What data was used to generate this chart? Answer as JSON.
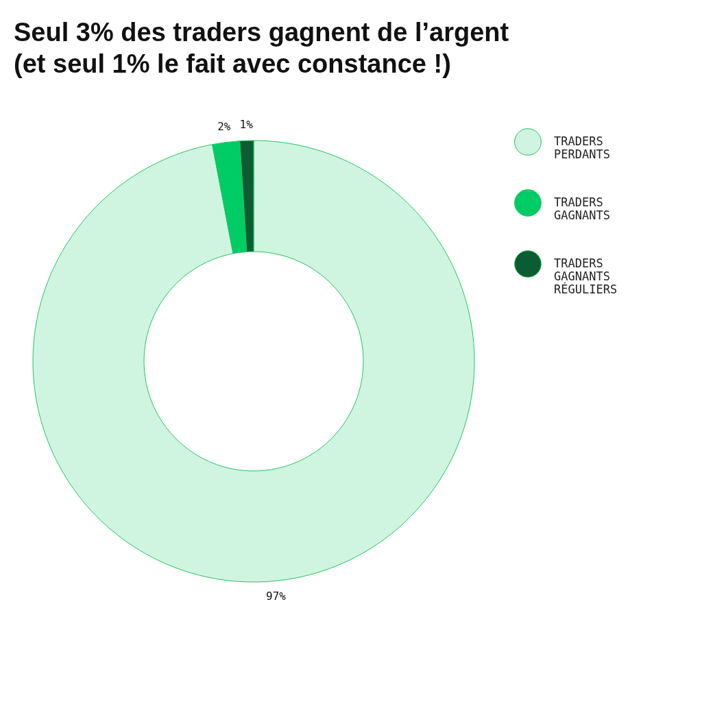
{
  "chart_data": {
    "type": "donut",
    "title": "Seul 3% des traders gagnent de l’argent\n(et seul 1% le fait avec constance !)",
    "categories": [
      "TRADERS PERDANTS",
      "TRADERS GAGNANTS",
      "TRADERS GAGNANTS RÉGULIERS"
    ],
    "values": [
      97,
      2,
      1
    ],
    "colors": [
      "#cff5e0",
      "#00cc66",
      "#0b5c32"
    ],
    "value_labels": [
      "97%",
      "2%",
      "1%"
    ],
    "legend": "right"
  }
}
